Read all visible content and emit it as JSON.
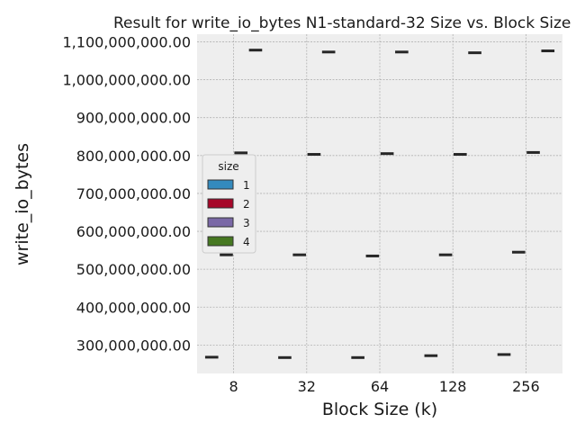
{
  "chart_data": {
    "type": "boxplot",
    "title": "Result for write_io_bytes N1-standard-32 Size vs. Block Size",
    "xlabel": "Block Size (k)",
    "ylabel": "write_io_bytes",
    "categories": [
      "8",
      "32",
      "64",
      "128",
      "256"
    ],
    "ylim": [
      225000000,
      1120000000
    ],
    "yticks": [
      300000000,
      400000000,
      500000000,
      600000000,
      700000000,
      800000000,
      900000000,
      1000000000,
      1100000000
    ],
    "ytick_labels": [
      "300,000,000.00",
      "400,000,000.00",
      "500,000,000.00",
      "600,000,000.00",
      "700,000,000.00",
      "800,000,000.00",
      "900,000,000.00",
      "1,000,000,000.00",
      "1,100,000,000.00"
    ],
    "grid": true,
    "legend": {
      "title": "size",
      "placement": "center-left"
    },
    "series": [
      {
        "name": "1",
        "color": "#348abd",
        "values": [
          268000000,
          267000000,
          267000000,
          272000000,
          275000000
        ]
      },
      {
        "name": "2",
        "color": "#a60628",
        "values": [
          538000000,
          538000000,
          535000000,
          538000000,
          545000000
        ]
      },
      {
        "name": "3",
        "color": "#7a68a6",
        "values": [
          807000000,
          803000000,
          805000000,
          803000000,
          808000000
        ]
      },
      {
        "name": "4",
        "color": "#467821",
        "values": [
          1078000000,
          1073000000,
          1073000000,
          1071000000,
          1076000000
        ]
      }
    ]
  }
}
